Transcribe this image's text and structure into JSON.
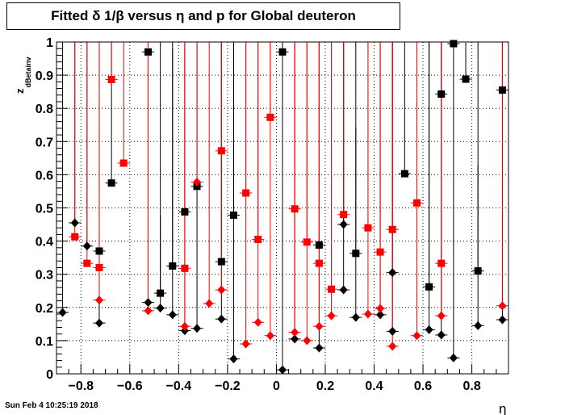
{
  "chart_data": {
    "type": "scatter",
    "title": "Fitted δ 1/β versus η and p for Global deuteron",
    "xlabel": "η",
    "ylabel": "z",
    "ylabel_sub": "dBetainv",
    "xlim": [
      -0.9,
      0.95
    ],
    "ylim": [
      0,
      1
    ],
    "x_ticks": [
      -0.8,
      -0.6,
      -0.4,
      -0.2,
      0,
      0.2,
      0.4,
      0.6,
      0.8
    ],
    "x_tick_labels": [
      "−0.8",
      "−0.6",
      "−0.4",
      "−0.2",
      "0",
      "0.2",
      "0.4",
      "0.6",
      "0.8"
    ],
    "y_ticks": [
      0,
      0.1,
      0.2,
      0.3,
      0.4,
      0.5,
      0.6,
      0.7,
      0.8,
      0.9,
      1
    ],
    "y_tick_labels": [
      "0",
      "0.1",
      "0.2",
      "0.3",
      "0.4",
      "0.5",
      "0.6",
      "0.7",
      "0.8",
      "0.9",
      "1"
    ],
    "grid": true,
    "timestamp": "Sun Feb  4 10:25:19 2018",
    "colors": {
      "black": "#000000",
      "red": "#ff0000"
    },
    "series": [
      {
        "color": "black",
        "marker": "square",
        "points": [
          {
            "x": -0.725,
            "y": 0.37,
            "yerr": 0.02
          },
          {
            "x": -0.675,
            "y": 0.575,
            "yerr": 0.45
          },
          {
            "x": -0.525,
            "y": 0.97,
            "yerr": 0.03
          },
          {
            "x": -0.475,
            "y": 0.243,
            "yerr": 0.235
          },
          {
            "x": -0.425,
            "y": 0.325,
            "yerr": 0.655
          },
          {
            "x": -0.375,
            "y": 0.488,
            "yerr": 0.49
          },
          {
            "x": -0.325,
            "y": 0.565,
            "yerr": 0.43
          },
          {
            "x": -0.225,
            "y": 0.338,
            "yerr": 0.66
          },
          {
            "x": -0.175,
            "y": 0.478,
            "yerr": 0.52
          },
          {
            "x": 0.025,
            "y": 0.97,
            "yerr": 0.03
          },
          {
            "x": 0.175,
            "y": 0.388,
            "yerr": 0.61
          },
          {
            "x": 0.325,
            "y": 0.363,
            "yerr": 0.38
          },
          {
            "x": 0.525,
            "y": 0.603,
            "yerr": 0.4
          },
          {
            "x": 0.625,
            "y": 0.262,
            "yerr": 0.74
          },
          {
            "x": 0.675,
            "y": 0.843,
            "yerr": 0.16
          },
          {
            "x": 0.725,
            "y": 0.995,
            "yerr": 0.005
          },
          {
            "x": 0.775,
            "y": 0.888,
            "yerr": 0.11
          },
          {
            "x": 0.825,
            "y": 0.31,
            "yerr": 0.32
          },
          {
            "x": 0.925,
            "y": 0.855,
            "yerr": 0.145
          }
        ]
      },
      {
        "color": "black",
        "marker": "diamond",
        "points": [
          {
            "x": -0.875,
            "y": 0.185,
            "yerr": 0.815
          },
          {
            "x": -0.825,
            "y": 0.455,
            "yerr": 0.545
          },
          {
            "x": -0.775,
            "y": 0.385,
            "yerr": 0.615
          },
          {
            "x": -0.725,
            "y": 0.153,
            "yerr": 0.847
          },
          {
            "x": -0.525,
            "y": 0.215,
            "yerr": 0.785
          },
          {
            "x": -0.475,
            "y": 0.198,
            "yerr": 0.802
          },
          {
            "x": -0.425,
            "y": 0.178,
            "yerr": 0.822
          },
          {
            "x": -0.375,
            "y": 0.13,
            "yerr": 0.87
          },
          {
            "x": -0.325,
            "y": 0.137,
            "yerr": 0.863
          },
          {
            "x": -0.225,
            "y": 0.165,
            "yerr": 0.835
          },
          {
            "x": -0.175,
            "y": 0.045,
            "yerr": 0.955
          },
          {
            "x": 0.025,
            "y": 0.012,
            "yerr": 0.988
          },
          {
            "x": 0.075,
            "y": 0.105,
            "yerr": 0.895
          },
          {
            "x": 0.175,
            "y": 0.078,
            "yerr": 0.922
          },
          {
            "x": 0.275,
            "y": 0.253,
            "yerr": 0.747
          },
          {
            "x": 0.275,
            "y": 0.45,
            "yerr": 0.55
          },
          {
            "x": 0.325,
            "y": 0.17,
            "yerr": 0.83
          },
          {
            "x": 0.425,
            "y": 0.178,
            "yerr": 0.822
          },
          {
            "x": 0.475,
            "y": 0.128,
            "yerr": 0.872
          },
          {
            "x": 0.475,
            "y": 0.305,
            "yerr": 0.695
          },
          {
            "x": 0.625,
            "y": 0.133,
            "yerr": 0.867
          },
          {
            "x": 0.675,
            "y": 0.117,
            "yerr": 0.883
          },
          {
            "x": 0.725,
            "y": 0.048,
            "yerr": 0.952
          },
          {
            "x": 0.825,
            "y": 0.145,
            "yerr": 0.855
          },
          {
            "x": 0.925,
            "y": 0.163,
            "yerr": 0.837
          }
        ]
      },
      {
        "color": "red",
        "marker": "square",
        "points": [
          {
            "x": -0.825,
            "y": 0.413,
            "yerr": 0.6
          },
          {
            "x": -0.775,
            "y": 0.333,
            "yerr": 0.67
          },
          {
            "x": -0.725,
            "y": 0.32,
            "yerr": 0.68
          },
          {
            "x": -0.675,
            "y": 0.887,
            "yerr": 0.113
          },
          {
            "x": -0.625,
            "y": 0.635,
            "yerr": 0.365
          },
          {
            "x": -0.375,
            "y": 0.318,
            "yerr": 0.68
          },
          {
            "x": -0.225,
            "y": 0.672,
            "yerr": 0.328
          },
          {
            "x": -0.125,
            "y": 0.545,
            "yerr": 0.455
          },
          {
            "x": -0.075,
            "y": 0.405,
            "yerr": 0.595
          },
          {
            "x": -0.025,
            "y": 0.773,
            "yerr": 0.227
          },
          {
            "x": 0.075,
            "y": 0.497,
            "yerr": 0.503
          },
          {
            "x": 0.125,
            "y": 0.397,
            "yerr": 0.603
          },
          {
            "x": 0.175,
            "y": 0.333,
            "yerr": 0.667
          },
          {
            "x": 0.225,
            "y": 0.255,
            "yerr": 0.745
          },
          {
            "x": 0.275,
            "y": 0.48,
            "yerr": 0.52
          },
          {
            "x": 0.375,
            "y": 0.44,
            "yerr": 0.56
          },
          {
            "x": 0.425,
            "y": 0.367,
            "yerr": 0.633
          },
          {
            "x": 0.475,
            "y": 0.435,
            "yerr": 0.565
          },
          {
            "x": 0.575,
            "y": 0.515,
            "yerr": 0.485
          },
          {
            "x": 0.675,
            "y": 0.333,
            "yerr": 0.667
          }
        ]
      },
      {
        "color": "red",
        "marker": "diamond",
        "points": [
          {
            "x": -0.725,
            "y": 0.222,
            "yerr": 0.778
          },
          {
            "x": -0.525,
            "y": 0.19,
            "yerr": 0.81
          },
          {
            "x": -0.375,
            "y": 0.143,
            "yerr": 0.857
          },
          {
            "x": -0.325,
            "y": 0.578,
            "yerr": 0.422
          },
          {
            "x": -0.275,
            "y": 0.212,
            "yerr": 0.788
          },
          {
            "x": -0.225,
            "y": 0.253,
            "yerr": 0.747
          },
          {
            "x": -0.125,
            "y": 0.09,
            "yerr": 0.91
          },
          {
            "x": -0.075,
            "y": 0.155,
            "yerr": 0.845
          },
          {
            "x": -0.025,
            "y": 0.115,
            "yerr": 0.885
          },
          {
            "x": 0.075,
            "y": 0.125,
            "yerr": 0.875
          },
          {
            "x": 0.125,
            "y": 0.1,
            "yerr": 0.9
          },
          {
            "x": 0.175,
            "y": 0.143,
            "yerr": 0.857
          },
          {
            "x": 0.225,
            "y": 0.175,
            "yerr": 0.825
          },
          {
            "x": 0.375,
            "y": 0.18,
            "yerr": 0.82
          },
          {
            "x": 0.425,
            "y": 0.197,
            "yerr": 0.803
          },
          {
            "x": 0.475,
            "y": 0.083,
            "yerr": 0.917
          },
          {
            "x": 0.575,
            "y": 0.115,
            "yerr": 0.885
          },
          {
            "x": 0.675,
            "y": 0.175,
            "yerr": 0.825
          },
          {
            "x": 0.925,
            "y": 0.205,
            "yerr": 0.795
          }
        ]
      }
    ]
  }
}
